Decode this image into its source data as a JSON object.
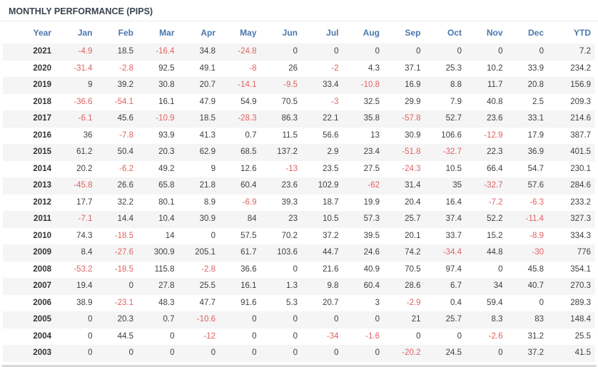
{
  "title": "MONTHLY PERFORMANCE (PIPS)",
  "colors": {
    "title_text": "#3a434e",
    "header_text": "#4a77ad",
    "positive_value": "#3f3f3f",
    "negative_value": "#e06161",
    "year_text": "#333333",
    "row_stripe": "#f5f5f5",
    "divider": "#d9d9d9"
  },
  "chart_data": {
    "type": "table",
    "title": "MONTHLY PERFORMANCE (PIPS)",
    "columns": [
      "Year",
      "Jan",
      "Feb",
      "Mar",
      "Apr",
      "May",
      "Jun",
      "Jul",
      "Aug",
      "Sep",
      "Oct",
      "Nov",
      "Dec",
      "YTD"
    ],
    "rows": [
      [
        "2021",
        -4.9,
        18.5,
        -16.4,
        34.8,
        -24.8,
        0,
        0,
        0,
        0,
        0,
        0,
        0,
        7.2
      ],
      [
        "2020",
        -31.4,
        -2.8,
        92.5,
        49.1,
        -8,
        26,
        -2,
        4.3,
        37.1,
        25.3,
        10.2,
        33.9,
        234.2
      ],
      [
        "2019",
        9,
        39.2,
        30.8,
        20.7,
        -14.1,
        -9.5,
        33.4,
        -10.8,
        16.9,
        8.8,
        11.7,
        20.8,
        156.9
      ],
      [
        "2018",
        -36.6,
        -54.1,
        16.1,
        47.9,
        54.9,
        70.5,
        -3,
        32.5,
        29.9,
        7.9,
        40.8,
        2.5,
        209.3
      ],
      [
        "2017",
        -6.1,
        45.6,
        -10.9,
        18.5,
        -28.3,
        86.3,
        22.1,
        35.8,
        -57.8,
        52.7,
        23.6,
        33.1,
        214.6
      ],
      [
        "2016",
        36,
        -7.8,
        93.9,
        41.3,
        0.7,
        11.5,
        56.6,
        13,
        30.9,
        106.6,
        -12.9,
        17.9,
        387.7
      ],
      [
        "2015",
        61.2,
        50.4,
        20.3,
        62.9,
        68.5,
        137.2,
        2.9,
        23.4,
        -51.8,
        -32.7,
        22.3,
        36.9,
        401.5
      ],
      [
        "2014",
        20.2,
        -6.2,
        49.2,
        9,
        12.6,
        -13,
        23.5,
        27.5,
        -24.3,
        10.5,
        66.4,
        54.7,
        230.1
      ],
      [
        "2013",
        -45.8,
        26.6,
        65.8,
        21.8,
        60.4,
        23.6,
        102.9,
        -62,
        31.4,
        35,
        -32.7,
        57.6,
        284.6
      ],
      [
        "2012",
        17.7,
        32.2,
        80.1,
        8.9,
        -6.9,
        39.3,
        18.7,
        19.9,
        20.4,
        16.4,
        -7.2,
        -6.3,
        233.2
      ],
      [
        "2011",
        -7.1,
        14.4,
        10.4,
        30.9,
        84,
        23,
        10.5,
        57.3,
        25.7,
        37.4,
        52.2,
        -11.4,
        327.3
      ],
      [
        "2010",
        74.3,
        -18.5,
        14,
        0,
        57.5,
        70.2,
        37.2,
        39.5,
        20.1,
        33.7,
        15.2,
        -8.9,
        334.3
      ],
      [
        "2009",
        8.4,
        -27.6,
        300.9,
        205.1,
        61.7,
        103.6,
        44.7,
        24.6,
        74.2,
        -34.4,
        44.8,
        -30,
        776
      ],
      [
        "2008",
        -53.2,
        -18.5,
        115.8,
        -2.8,
        36.6,
        0,
        21.6,
        40.9,
        70.5,
        97.4,
        0,
        45.8,
        354.1
      ],
      [
        "2007",
        19.4,
        0,
        27.8,
        25.5,
        16.1,
        1.3,
        9.8,
        60.4,
        28.6,
        6.7,
        34,
        40.7,
        270.3
      ],
      [
        "2006",
        38.9,
        -23.1,
        48.3,
        47.7,
        91.6,
        5.3,
        20.7,
        3,
        -2.9,
        0.4,
        59.4,
        0,
        289.3
      ],
      [
        "2005",
        0,
        20.3,
        0.7,
        -10.6,
        0,
        0,
        0,
        0,
        21,
        25.7,
        8.3,
        83,
        148.4
      ],
      [
        "2004",
        0,
        44.5,
        0,
        -12,
        0,
        0,
        -34,
        -1.6,
        0,
        0,
        -2.6,
        31.2,
        25.5
      ],
      [
        "2003",
        0,
        0,
        0,
        0,
        0,
        0,
        0,
        0,
        -20.2,
        24.5,
        0,
        37.2,
        41.5
      ]
    ]
  }
}
